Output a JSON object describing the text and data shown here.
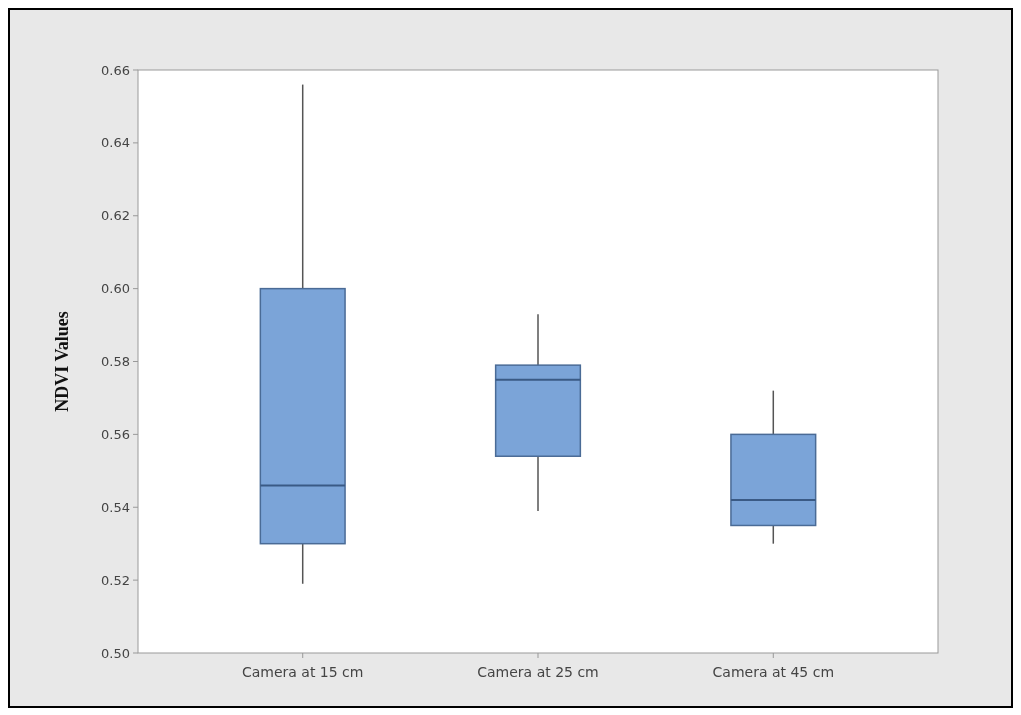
{
  "chart_data": {
    "type": "box",
    "ylabel": "NDVI Values",
    "categories": [
      "Camera at 15 cm",
      "Camera at 25 cm",
      "Camera at 45 cm"
    ],
    "boxes": [
      {
        "low": 0.519,
        "q1": 0.53,
        "median": 0.546,
        "q3": 0.6,
        "high": 0.656
      },
      {
        "low": 0.539,
        "q1": 0.554,
        "median": 0.575,
        "q3": 0.579,
        "high": 0.593
      },
      {
        "low": 0.53,
        "q1": 0.535,
        "median": 0.542,
        "q3": 0.56,
        "high": 0.572
      }
    ],
    "color": "#7ba4d8",
    "ylim": [
      0.5,
      0.66
    ],
    "yticks": [
      {
        "value": 0.5,
        "label": "0.50"
      },
      0.52,
      0.54,
      0.56,
      0.58,
      {
        "value": 0.6,
        "label": "0.60"
      },
      0.62,
      0.64,
      0.66
    ],
    "grid": false
  }
}
